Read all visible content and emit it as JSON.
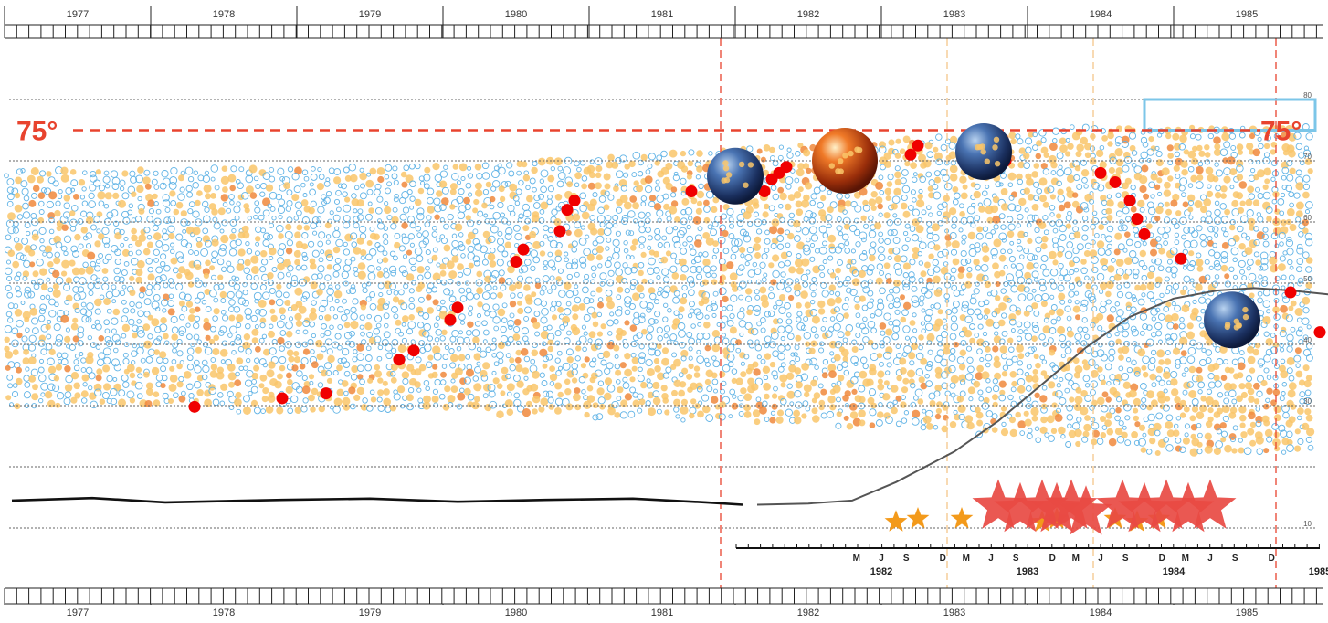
{
  "chart_data": {
    "type": "scatter",
    "top_axis_years": [
      "1977",
      "1978",
      "1979",
      "1980",
      "1981",
      "1982",
      "1983",
      "1984",
      "1985"
    ],
    "bottom_axis_years": [
      "1977",
      "1978",
      "1979",
      "1980",
      "1981",
      "1982",
      "1983",
      "1984",
      "1985"
    ],
    "y_tick_labels": [
      "80",
      "70",
      "60",
      "50",
      "40",
      "30",
      "10"
    ],
    "threshold_label_left": "75°",
    "threshold_label_right": "75°",
    "threshold_value": 75,
    "ylim": [
      5,
      85
    ],
    "detail_axis": {
      "month_labels": [
        "M",
        "J",
        "S",
        "D",
        "M",
        "J",
        "S",
        "D",
        "M",
        "J",
        "S",
        "D",
        "M",
        "J",
        "S",
        "D"
      ],
      "month_x": [
        1982.33,
        1982.5,
        1982.67,
        1982.92,
        1983.08,
        1983.25,
        1983.42,
        1983.67,
        1983.83,
        1984.0,
        1984.17,
        1984.42,
        1984.58,
        1984.75,
        1984.92,
        1985.17
      ],
      "year_labels": [
        "1982",
        "1983",
        "1984",
        "1985"
      ],
      "year_x": [
        1982.5,
        1983.5,
        1984.5,
        1985.5
      ]
    },
    "vertical_markers": [
      {
        "x": 1981.4,
        "color": "#e8432e"
      },
      {
        "x": 1982.95,
        "color": "#f5c78a"
      },
      {
        "x": 1983.95,
        "color": "#f5c78a"
      },
      {
        "x": 1985.2,
        "color": "#e8432e"
      }
    ],
    "series": [
      {
        "marker": "red-dot",
        "color": "#f00000",
        "points": [
          [
            1977.8,
            29.8
          ],
          [
            1978.4,
            31.2
          ],
          [
            1978.7,
            32.0
          ],
          [
            1979.2,
            37.5
          ],
          [
            1979.3,
            39.0
          ],
          [
            1979.55,
            44.0
          ],
          [
            1979.6,
            46.0
          ],
          [
            1980.0,
            53.5
          ],
          [
            1980.05,
            55.5
          ],
          [
            1980.3,
            58.5
          ],
          [
            1980.35,
            62.0
          ],
          [
            1980.4,
            63.5
          ],
          [
            1981.2,
            65.0
          ],
          [
            1981.7,
            65.0
          ],
          [
            1981.75,
            67.0
          ],
          [
            1981.8,
            68.0
          ],
          [
            1981.85,
            69.0
          ],
          [
            1982.7,
            71.0
          ],
          [
            1982.75,
            72.5
          ],
          [
            1983.05,
            71.5
          ],
          [
            1983.1,
            73.0
          ],
          [
            1983.15,
            71.0
          ],
          [
            1983.35,
            70.0
          ],
          [
            1984.0,
            68.0
          ],
          [
            1984.1,
            66.5
          ],
          [
            1984.2,
            63.5
          ],
          [
            1984.25,
            60.5
          ],
          [
            1984.3,
            58.0
          ],
          [
            1984.55,
            54.0
          ],
          [
            1985.3,
            48.5
          ],
          [
            1985.5,
            42.0
          ],
          [
            1985.9,
            31.0
          ]
        ]
      },
      {
        "marker": "planet",
        "color": "#1f3f7a",
        "points": [
          [
            1981.5,
            67.5
          ],
          [
            1983.2,
            71.5
          ],
          [
            1984.9,
            44.0
          ]
        ]
      },
      {
        "marker": "sun",
        "color": "#c8551a",
        "points": [
          [
            1982.25,
            70.0
          ]
        ]
      },
      {
        "marker": "small-star",
        "color": "#f39a1b",
        "points": [
          [
            1982.6,
            11.0
          ],
          [
            1982.75,
            11.5
          ],
          [
            1983.05,
            11.5
          ],
          [
            1983.6,
            11.0
          ],
          [
            1983.7,
            11.5
          ],
          [
            1984.1,
            11.5
          ],
          [
            1984.25,
            11.0
          ],
          [
            1984.4,
            11.5
          ]
        ]
      },
      {
        "marker": "big-star",
        "color": "#e84a43",
        "points": [
          [
            1983.3,
            13.5
          ],
          [
            1983.45,
            13.0
          ],
          [
            1983.6,
            13.5
          ],
          [
            1983.7,
            13.0
          ],
          [
            1983.8,
            13.5
          ],
          [
            1983.9,
            12.5
          ],
          [
            1984.15,
            13.5
          ],
          [
            1984.3,
            13.0
          ],
          [
            1984.45,
            13.5
          ],
          [
            1984.6,
            13.0
          ],
          [
            1984.75,
            13.5
          ]
        ]
      }
    ],
    "lines": [
      {
        "name": "",
        "color": "#111111",
        "points": [
          [
            1976.55,
            14.5
          ],
          [
            1977.1,
            14.9
          ],
          [
            1977.6,
            14.2
          ],
          [
            1978.4,
            14.6
          ],
          [
            1979.0,
            14.8
          ],
          [
            1979.6,
            14.3
          ],
          [
            1980.2,
            14.6
          ],
          [
            1980.8,
            14.8
          ],
          [
            1981.3,
            14.2
          ],
          [
            1981.55,
            13.8
          ]
        ]
      },
      {
        "name": "",
        "color": "#555555",
        "points": [
          [
            1981.65,
            13.8
          ],
          [
            1982.0,
            14.0
          ],
          [
            1982.3,
            14.5
          ],
          [
            1982.6,
            17.5
          ],
          [
            1983.0,
            22.5
          ],
          [
            1983.3,
            27.5
          ],
          [
            1983.6,
            33.5
          ],
          [
            1983.9,
            39.5
          ],
          [
            1984.2,
            44.5
          ],
          [
            1984.5,
            47.5
          ],
          [
            1984.8,
            48.8
          ],
          [
            1985.05,
            49.2
          ],
          [
            1985.3,
            48.8
          ],
          [
            1985.7,
            47.8
          ],
          [
            1986.0,
            47.0
          ]
        ]
      }
    ],
    "highlight_box": {
      "x": [
        1984.3,
        1986.0
      ],
      "y": [
        75,
        80
      ],
      "color": "#7cc6e8"
    }
  }
}
